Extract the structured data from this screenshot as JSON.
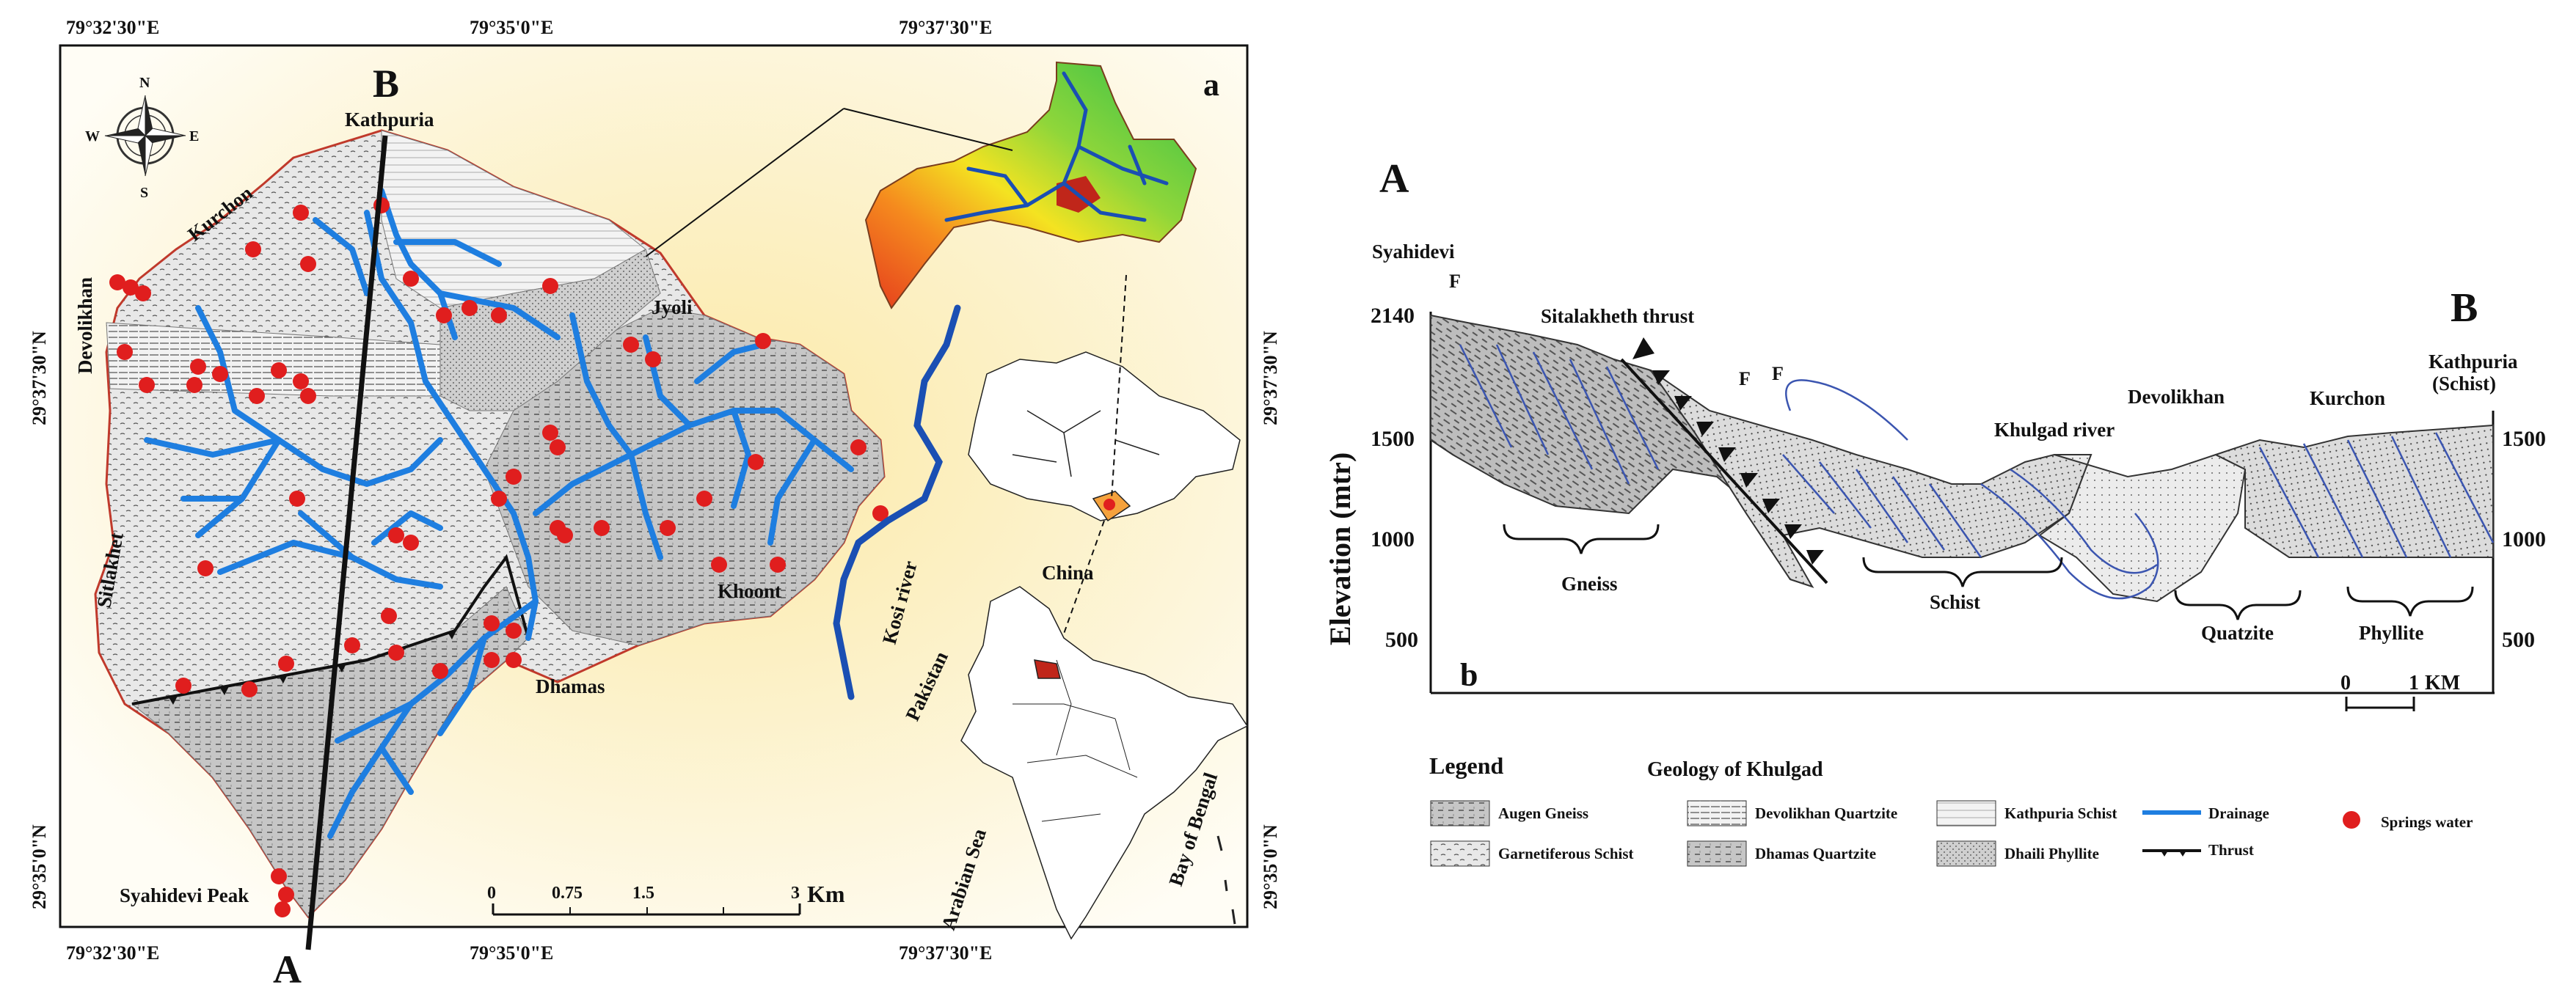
{
  "map_a": {
    "panel_label": "a",
    "coords_top": [
      "79°32'30\"E",
      "79°35'0\"E",
      "79°37'30\"E"
    ],
    "coords_bottom": [
      "79°32'30\"E",
      "79°35'0\"E",
      "79°37'30\"E"
    ],
    "coords_left": [
      "29°37'30\"N",
      "29°35'0\"N"
    ],
    "coords_right": [
      "29°37'30\"N",
      "29°35'0\"N"
    ],
    "section_start": "A",
    "section_end": "B",
    "places": {
      "kathpuria": "Kathpuria",
      "kurchon": "Kurchon",
      "devolikhan": "Devolikhan",
      "jyoli": "Jyoli",
      "sitlakhet": "Sitlakhet",
      "khoont": "Khoont",
      "dhamas": "Dhamas",
      "syahidevi_peak": "Syahidevi Peak",
      "kosi_river": "Kosi river",
      "china": "China",
      "pakistan": "Pakistan",
      "arabian_sea": "Arabian Sea",
      "bay_of_bengal": "Bay of Bengal"
    },
    "compass": {
      "n": "N",
      "s": "S",
      "e": "E",
      "w": "W"
    },
    "scalebar": {
      "ticks": [
        "0",
        "0.75",
        "1.5",
        "3"
      ],
      "unit": "Km"
    }
  },
  "section_b": {
    "panel_label": "b",
    "start_label": "A",
    "end_label": "B",
    "ylabel": "Elevation (mtr)",
    "left_ticks": [
      "2140",
      "1500",
      "1000",
      "500"
    ],
    "right_ticks": [
      "1500",
      "1000",
      "500"
    ],
    "features": {
      "syahidevi": "Syahidevi",
      "fault_f1": "F",
      "fault_f2": "F",
      "fault_f3": "F",
      "sitalakheth_thrust": "Sitalakheth thrust",
      "khulgad_river": "Khulgad river",
      "devolikhan": "Devolikhan",
      "kurchon": "Kurchon",
      "kathpuria": "Kathpuria",
      "kathpuria_sub": "(Schist)"
    },
    "units": {
      "gneiss": "Gneiss",
      "schist": "Schist",
      "quatzite": "Quatzite",
      "phyllite": "Phyllite"
    },
    "scalebar": {
      "zero": "0",
      "one": "1",
      "unit": "KM"
    }
  },
  "legend": {
    "title": "Legend",
    "subtitle": "Geology of Khulgad",
    "items": {
      "augen_gneiss": "Augen Gneiss",
      "garnetiferous_schist": "Garnetiferous Schist",
      "devolikhan_quartzite": "Devolikhan Quartzite",
      "dhamas_quartzite": "Dhamas Quartzite",
      "kathpuria_schist": "Kathpuria Schist",
      "dhaili_phyllite": "Dhaili Phyllite",
      "drainage": "Drainage",
      "thrust": "Thrust",
      "springs": "Springs water"
    }
  },
  "colors": {
    "drainage": "#1e7ee0",
    "spring": "#e01e1e",
    "boundary": "#c0392b",
    "frame": "#111111"
  }
}
